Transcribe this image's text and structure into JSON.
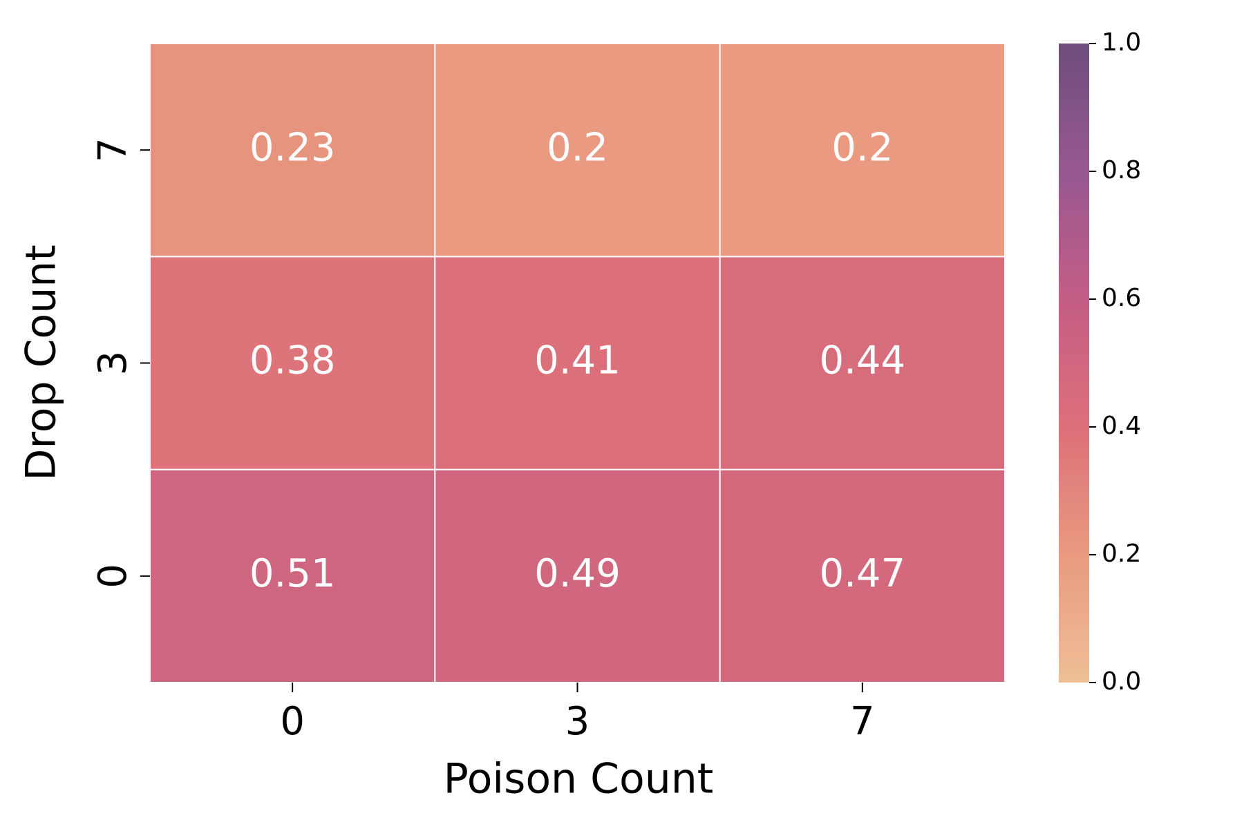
{
  "chart_data": {
    "type": "heatmap",
    "xlabel": "Poison Count",
    "ylabel": "Drop Count",
    "x_categories": [
      "0",
      "3",
      "7"
    ],
    "y_categories": [
      "0",
      "3",
      "7"
    ],
    "values": [
      [
        0.51,
        0.49,
        0.47
      ],
      [
        0.38,
        0.41,
        0.44
      ],
      [
        0.23,
        0.2,
        0.2
      ]
    ],
    "colorbar": {
      "clim": [
        0,
        1
      ],
      "ticks": [
        {
          "value": 0,
          "label": "0.0"
        },
        0.2,
        0.4,
        0.6,
        0.8,
        {
          "value": 1,
          "label": "1.0"
        }
      ],
      "colors": [
        "#eebf95",
        "#e99a80",
        "#dc7079",
        "#c45d85",
        "#975891",
        "#6e4d7f"
      ]
    },
    "annotation_color": "#ffffff",
    "cell_border_color": "#ffffff"
  }
}
